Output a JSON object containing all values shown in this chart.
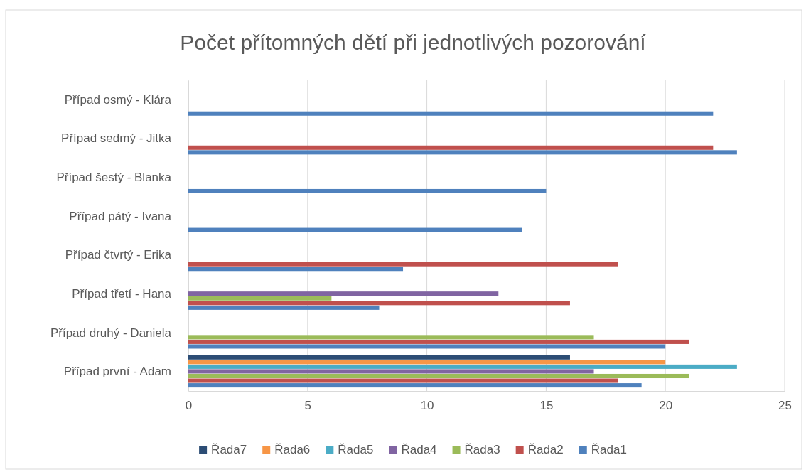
{
  "chart_data": {
    "type": "bar",
    "orientation": "horizontal",
    "title": "Počet přítomných dětí při jednotlivých pozorování",
    "categories": [
      "Případ osmý - Klára",
      "Případ sedmý - Jitka",
      "Případ šestý - Blanka",
      "Případ pátý - Ivana",
      "Případ čtvrtý - Erika",
      "Případ třetí - Hana",
      "Případ druhý - Daniela",
      "Případ první  - Adam"
    ],
    "series": [
      {
        "name": "Řada1",
        "color": "#4f81bd",
        "values": [
          22,
          23,
          15,
          14,
          9,
          8,
          20,
          19
        ]
      },
      {
        "name": "Řada2",
        "color": "#c0504d",
        "values": [
          null,
          22,
          null,
          null,
          18,
          16,
          21,
          18
        ]
      },
      {
        "name": "Řada3",
        "color": "#9bbb59",
        "values": [
          null,
          null,
          null,
          null,
          null,
          6,
          17,
          21
        ]
      },
      {
        "name": "Řada4",
        "color": "#8064a2",
        "values": [
          null,
          null,
          null,
          null,
          null,
          13,
          null,
          17
        ]
      },
      {
        "name": "Řada5",
        "color": "#4bacc6",
        "values": [
          null,
          null,
          null,
          null,
          null,
          null,
          null,
          23
        ]
      },
      {
        "name": "Řada6",
        "color": "#f79646",
        "values": [
          null,
          null,
          null,
          null,
          null,
          null,
          null,
          20
        ]
      },
      {
        "name": "Řada7",
        "color": "#2c4d75",
        "values": [
          null,
          null,
          null,
          null,
          null,
          null,
          null,
          16
        ]
      }
    ],
    "xlim": [
      0,
      25
    ],
    "xticks": [
      0,
      5,
      10,
      15,
      20,
      25
    ],
    "grid": "x",
    "legend": "bottom"
  }
}
